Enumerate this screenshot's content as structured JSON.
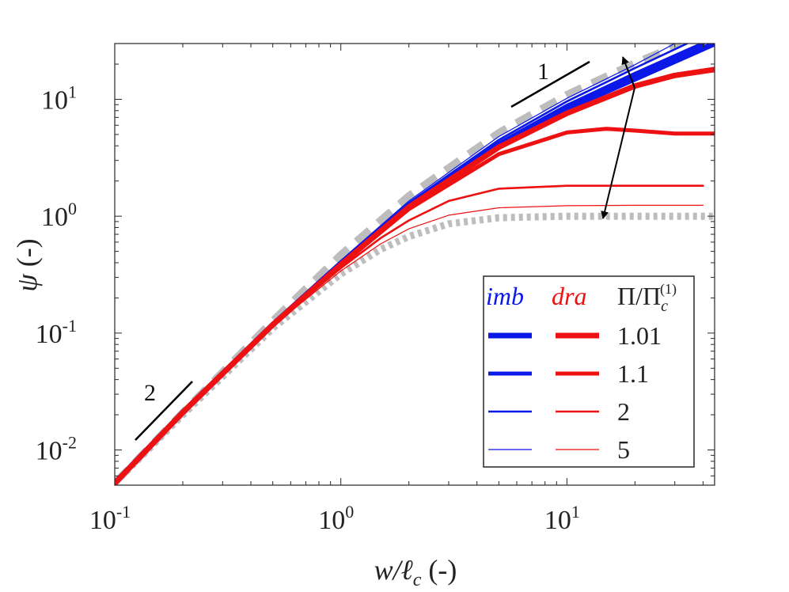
{
  "chart_data": {
    "type": "line",
    "scale": "log-log",
    "xlabel_var": "w/ℓ",
    "xlabel_sub": "c",
    "xlabel_unit": " (-)",
    "ylabel_var": "ψ",
    "ylabel_unit": " (-)",
    "xlim": [
      0.1,
      45
    ],
    "ylim": [
      0.005,
      30
    ],
    "xticks": [
      {
        "base": "10",
        "exp": "-1",
        "value": 0.1
      },
      {
        "base": "10",
        "exp": "0",
        "value": 1
      },
      {
        "base": "10",
        "exp": "1",
        "value": 10
      }
    ],
    "yticks": [
      {
        "base": "10",
        "exp": "-2",
        "value": 0.01
      },
      {
        "base": "10",
        "exp": "-1",
        "value": 0.1
      },
      {
        "base": "10",
        "exp": "0",
        "value": 1
      },
      {
        "base": "10",
        "exp": "1",
        "value": 10
      }
    ],
    "legend": {
      "header_imb": "imb",
      "header_dra": "dra",
      "header_param": "Π/Π",
      "header_param_sub": "c",
      "header_param_sup": "(1)",
      "entries": [
        {
          "label": "1.01",
          "width": 7
        },
        {
          "label": "1.1",
          "width": 5
        },
        {
          "label": "2",
          "width": 2.6
        },
        {
          "label": "5",
          "width": 1.2
        }
      ],
      "position": "bottom-right"
    },
    "annotations": {
      "slope_small": "2",
      "slope_large": "1"
    },
    "reference_curves": [
      {
        "name": "imbibition limit",
        "style": "dashed",
        "color": "#bdbdbd",
        "x": [
          0.1,
          0.2,
          0.5,
          1,
          2,
          5,
          10,
          20,
          32
        ],
        "y": [
          0.0052,
          0.021,
          0.128,
          0.47,
          1.5,
          5.2,
          11.0,
          20.5,
          30
        ]
      },
      {
        "name": "drainage limit",
        "style": "dotted",
        "color": "#bdbdbd",
        "x": [
          0.1,
          0.2,
          0.5,
          1,
          1.5,
          2,
          3,
          5,
          10,
          20,
          45
        ],
        "y": [
          0.0052,
          0.02,
          0.11,
          0.32,
          0.52,
          0.67,
          0.86,
          0.97,
          1.0,
          1.0,
          1.0
        ]
      }
    ],
    "series": [
      {
        "name": "imb Π/Πc=5",
        "color": "#0b18e8",
        "width": 1.2,
        "x": [
          0.1,
          0.2,
          0.5,
          1,
          2,
          5,
          10,
          20,
          30
        ],
        "y": [
          0.0052,
          0.021,
          0.125,
          0.42,
          1.35,
          4.8,
          10.2,
          19.8,
          30
        ]
      },
      {
        "name": "imb Π/Πc=2",
        "color": "#0b18e8",
        "width": 2.6,
        "x": [
          0.1,
          0.2,
          0.5,
          1,
          2,
          5,
          10,
          20,
          34
        ],
        "y": [
          0.0052,
          0.021,
          0.123,
          0.41,
          1.3,
          4.5,
          9.6,
          18.5,
          30
        ]
      },
      {
        "name": "imb Π/Πc=1.1",
        "color": "#0b18e8",
        "width": 5,
        "x": [
          0.1,
          0.2,
          0.5,
          1,
          2,
          5,
          10,
          20,
          40
        ],
        "y": [
          0.0052,
          0.021,
          0.12,
          0.4,
          1.25,
          4.2,
          8.8,
          16.5,
          30
        ]
      },
      {
        "name": "imb Π/Πc=1.01",
        "color": "#0b18e8",
        "width": 7,
        "x": [
          0.1,
          0.2,
          0.5,
          1,
          2,
          5,
          10,
          20,
          45
        ],
        "y": [
          0.0052,
          0.021,
          0.118,
          0.39,
          1.2,
          4.0,
          8.3,
          15.0,
          30
        ]
      },
      {
        "name": "dra Π/Πc=5",
        "color": "#ee1111",
        "width": 1.2,
        "x": [
          0.1,
          0.2,
          0.5,
          1,
          1.5,
          2,
          3,
          5,
          10,
          20,
          40
        ],
        "y": [
          0.0052,
          0.02,
          0.115,
          0.34,
          0.58,
          0.78,
          1.02,
          1.18,
          1.23,
          1.24,
          1.24
        ]
      },
      {
        "name": "dra Π/Πc=2",
        "color": "#ee1111",
        "width": 2.6,
        "x": [
          0.1,
          0.2,
          0.5,
          1,
          1.5,
          2,
          3,
          5,
          10,
          20,
          40
        ],
        "y": [
          0.0052,
          0.02,
          0.117,
          0.36,
          0.65,
          0.92,
          1.35,
          1.72,
          1.82,
          1.82,
          1.82
        ]
      },
      {
        "name": "dra Π/Πc=1.1",
        "color": "#ee1111",
        "width": 5,
        "x": [
          0.1,
          0.2,
          0.5,
          1,
          2,
          5,
          10,
          15,
          20,
          30,
          45
        ],
        "y": [
          0.0052,
          0.021,
          0.118,
          0.38,
          1.15,
          3.4,
          5.2,
          5.6,
          5.4,
          5.1,
          5.1
        ]
      },
      {
        "name": "dra Π/Πc=1.01",
        "color": "#ee1111",
        "width": 7,
        "x": [
          0.1,
          0.2,
          0.5,
          1,
          2,
          5,
          10,
          20,
          30,
          45
        ],
        "y": [
          0.0052,
          0.021,
          0.118,
          0.385,
          1.2,
          3.9,
          7.6,
          13.0,
          16.0,
          18.0
        ]
      }
    ]
  }
}
